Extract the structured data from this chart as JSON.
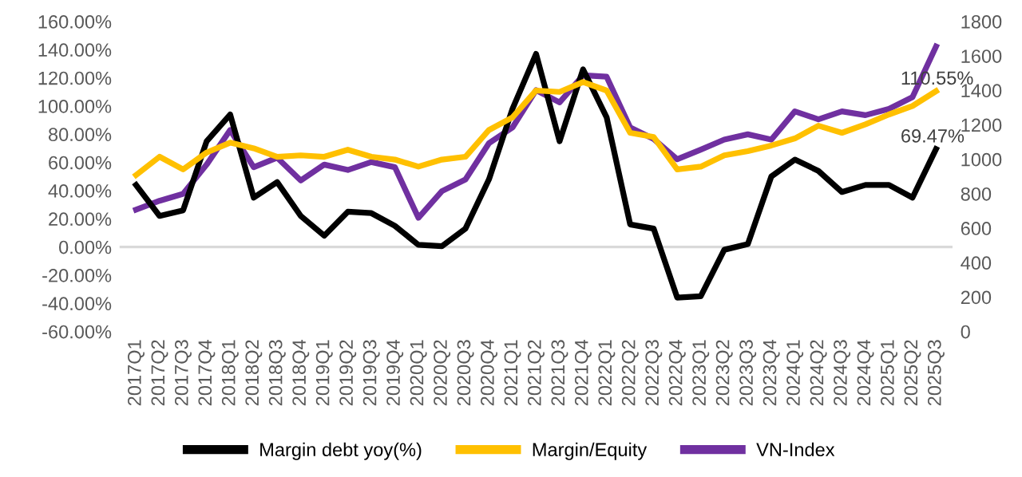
{
  "chart_data": {
    "type": "line",
    "categories": [
      "2017Q1",
      "2017Q2",
      "2017Q3",
      "2017Q4",
      "2018Q1",
      "2018Q2",
      "2018Q3",
      "2018Q4",
      "2019Q1",
      "2019Q2",
      "2019Q3",
      "2019Q4",
      "2020Q1",
      "2020Q2",
      "2020Q3",
      "2020Q4",
      "2021Q1",
      "2021Q2",
      "2021Q3",
      "2021Q4",
      "2022Q1",
      "2022Q2",
      "2022Q3",
      "2022Q4",
      "2023Q1",
      "2023Q2",
      "2023Q3",
      "2023Q4",
      "2024Q1",
      "2024Q2",
      "2024Q3",
      "2024Q4",
      "2025Q1",
      "2025Q2",
      "2025Q3"
    ],
    "series": [
      {
        "name": "Margin debt yoy(%)",
        "color": "#000000",
        "values": [
          44,
          22,
          26,
          75,
          94,
          35,
          46,
          22,
          8,
          25,
          24,
          15,
          1.5,
          0.5,
          13,
          48,
          98,
          137,
          75,
          126,
          92,
          16,
          13,
          -36,
          -35,
          -2,
          2,
          50,
          62,
          54,
          39,
          44,
          44,
          35,
          69.47
        ]
      },
      {
        "name": "Margin/Equity",
        "color": "#ffc000",
        "values": [
          51,
          64,
          55,
          67,
          74,
          70,
          64,
          65,
          64,
          69,
          64,
          62,
          57,
          62,
          64,
          83,
          92,
          111,
          110,
          117,
          111,
          81,
          78,
          55,
          57,
          65,
          68,
          72,
          77,
          86,
          81,
          87,
          94,
          100,
          110.55
        ]
      },
      {
        "name": "VN-Index",
        "color": "#7030a0",
        "axis": "y2",
        "values": [
          707,
          759,
          799,
          969,
          1170,
          954,
          1009,
          877,
          969,
          938,
          984,
          954,
          660,
          815,
          883,
          1093,
          1185,
          1401,
          1330,
          1488,
          1479,
          1185,
          1118,
          1000,
          1056,
          1114,
          1145,
          1114,
          1278,
          1232,
          1278,
          1256,
          1293,
          1361,
          1655
        ]
      }
    ],
    "ylim": [
      -60,
      160
    ],
    "yticks": [
      {
        "value": -60,
        "label": "-60.00%"
      },
      {
        "value": -40,
        "label": "-40.00%"
      },
      {
        "value": -20,
        "label": "-20.00%"
      },
      {
        "value": 0,
        "label": "0.00%"
      },
      {
        "value": 20,
        "label": "20.00%"
      },
      {
        "value": 40,
        "label": "40.00%"
      },
      {
        "value": 60,
        "label": "60.00%"
      },
      {
        "value": 80,
        "label": "80.00%"
      },
      {
        "value": 100,
        "label": "100.00%"
      },
      {
        "value": 120,
        "label": "120.00%"
      },
      {
        "value": 140,
        "label": "140.00%"
      },
      {
        "value": 160,
        "label": "160.00%"
      }
    ],
    "y2lim": [
      0,
      1800
    ],
    "y2ticks": [
      0,
      200,
      400,
      600,
      800,
      1000,
      1200,
      1400,
      1600,
      1800
    ],
    "annotations": [
      {
        "text": "110.55%",
        "x": "2025Q3",
        "y": 110.55
      },
      {
        "text": "69.47%",
        "x": "2025Q3",
        "y": 69.47
      }
    ],
    "ref_lines": [
      {
        "axis": "y",
        "value": 0,
        "color": "#d9d9d9"
      }
    ],
    "grid": false,
    "legend": "bottom",
    "marker": "none",
    "line_style": "solid"
  }
}
